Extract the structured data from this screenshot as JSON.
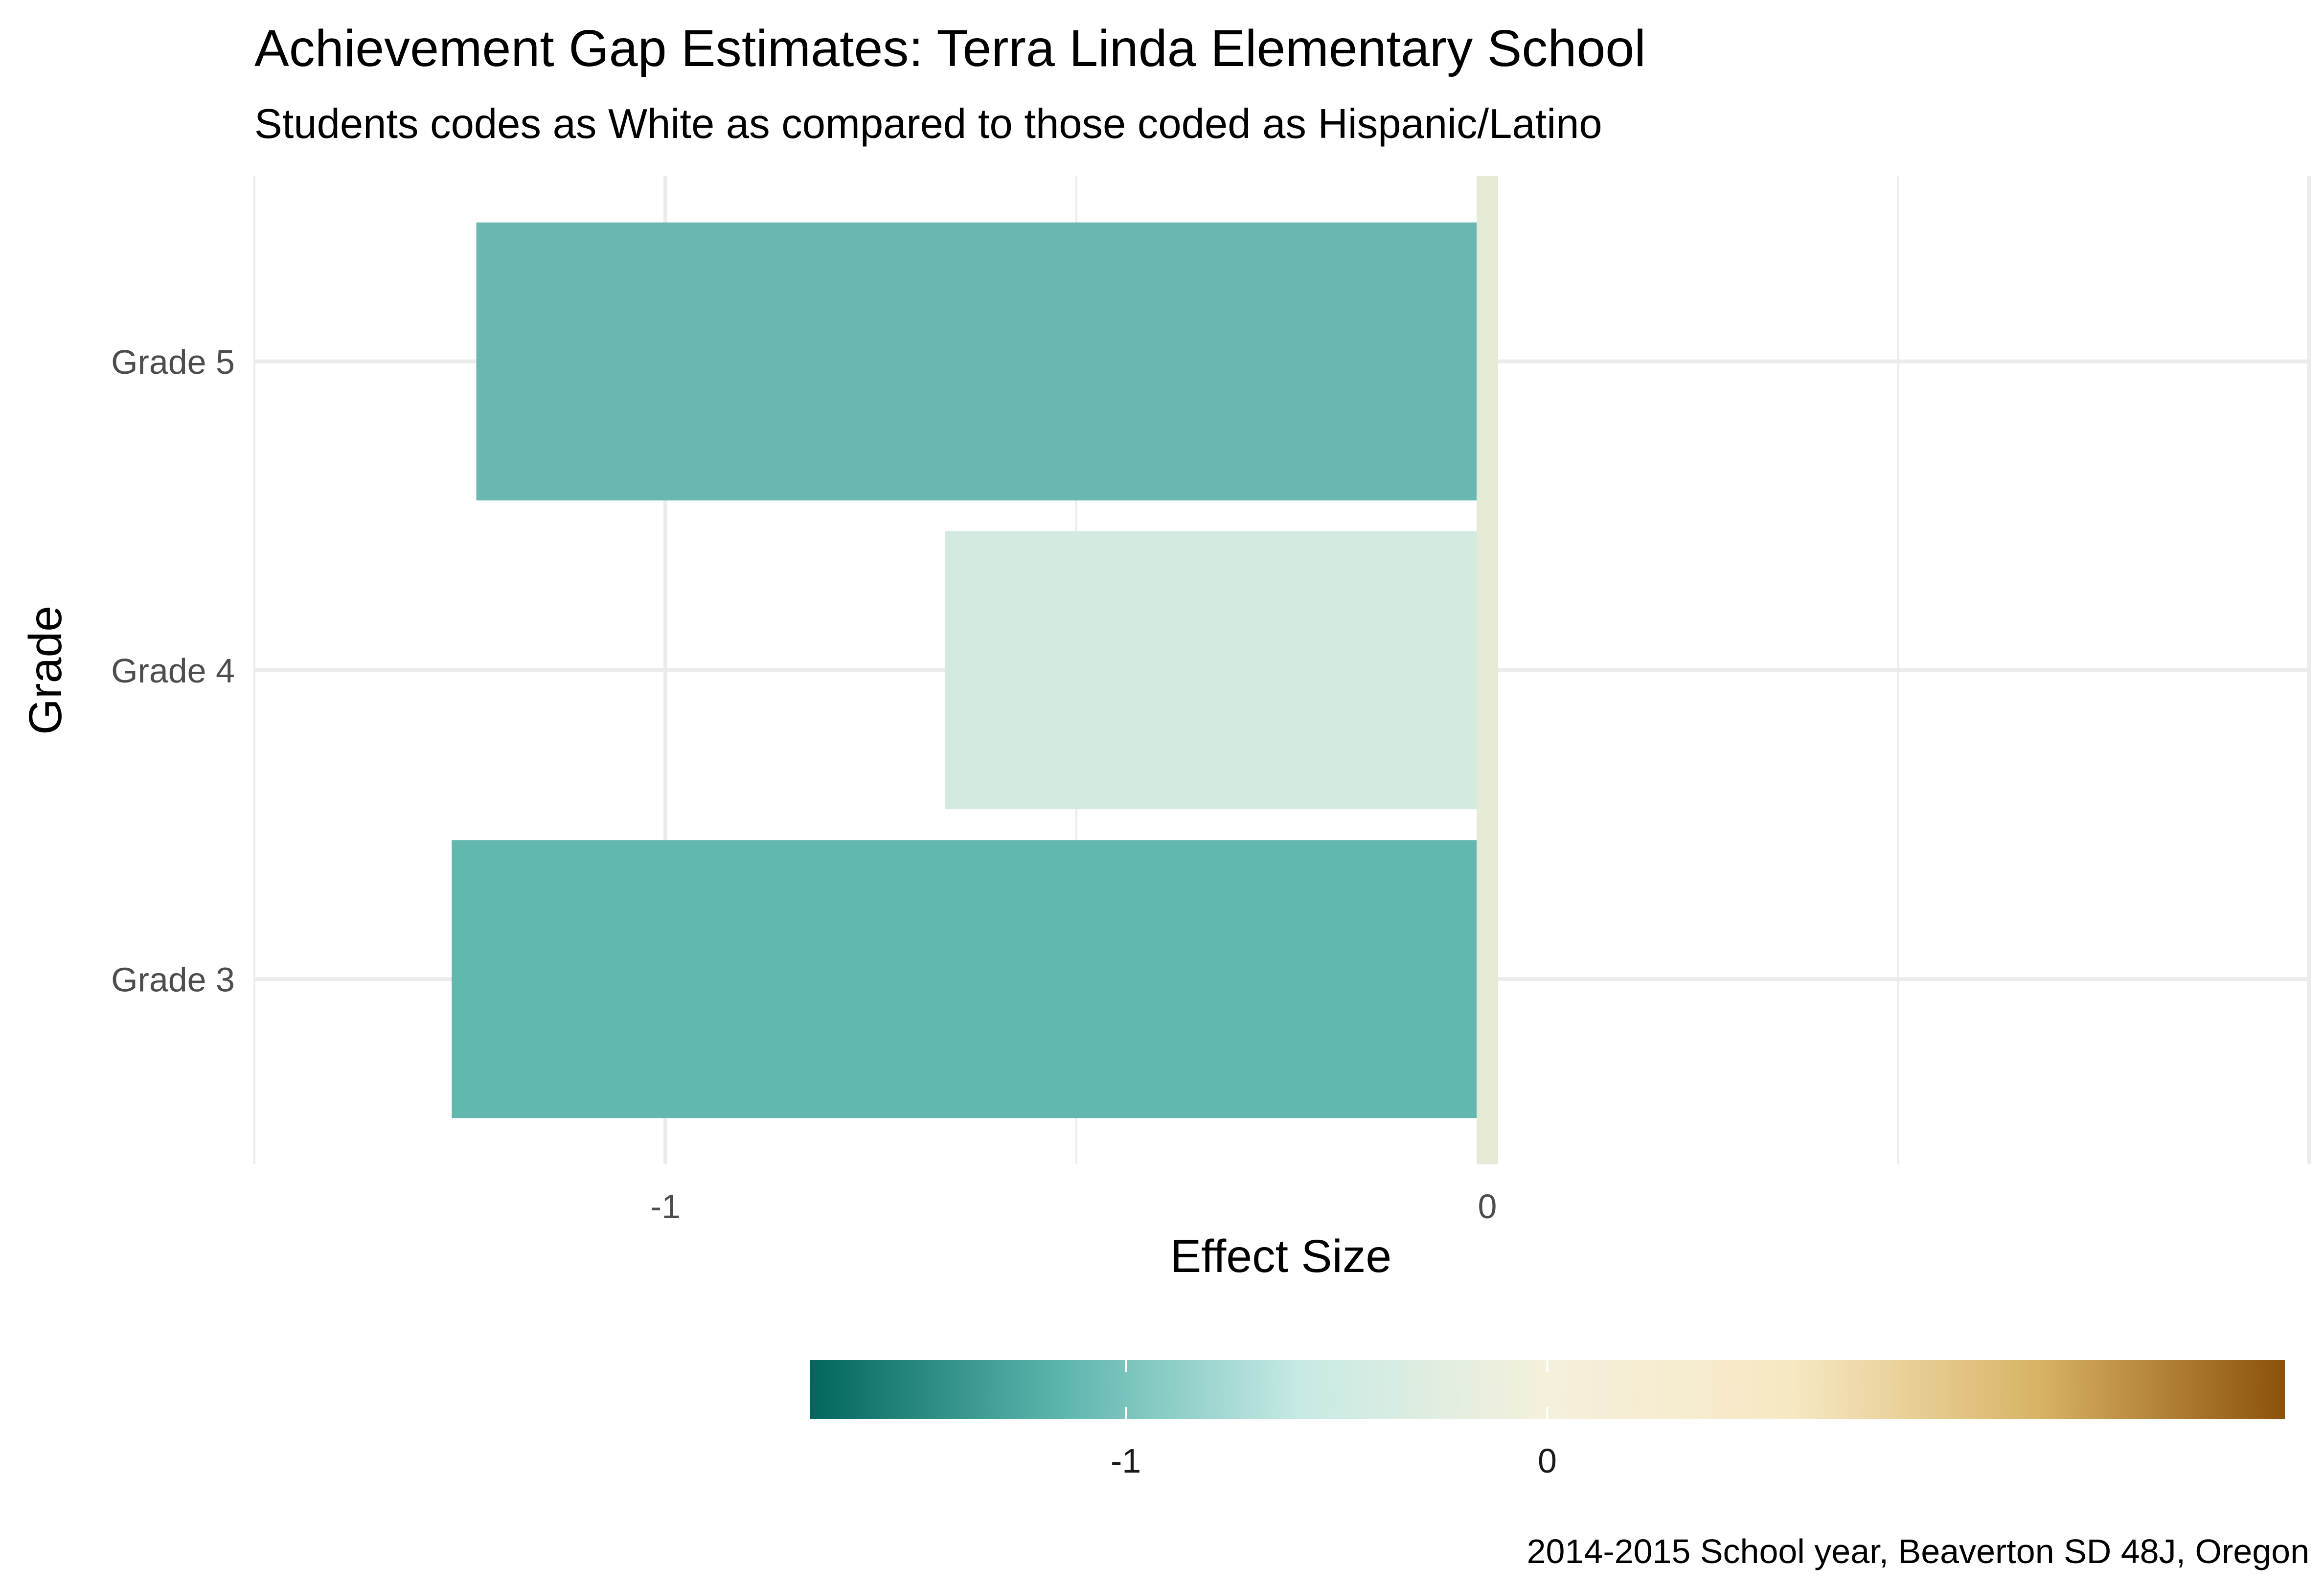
{
  "chart_data": {
    "type": "bar",
    "orientation": "horizontal",
    "title": "Achievement Gap Estimates: Terra Linda Elementary School",
    "subtitle": "Students codes as White as compared to those coded as Hispanic/Latino",
    "xlabel": "Effect Size",
    "ylabel": "Grade",
    "caption": "2014-2015 School year, Beaverton SD 48J, Oregon",
    "categories": [
      "Grade 3",
      "Grade 4",
      "Grade 5"
    ],
    "values": [
      -1.26,
      -0.66,
      -1.23
    ],
    "bar_colors": [
      "#62b7af",
      "#d2eae0",
      "#68b8b1"
    ],
    "xlim": [
      -1.5,
      1
    ],
    "xticks": [
      -1,
      0
    ],
    "xtick_labels": [
      "-1",
      "0"
    ],
    "grid": true,
    "reference_line": {
      "value": 0,
      "color": "#e5ead6"
    },
    "legend": {
      "type": "colorbar",
      "placement": "bottom",
      "range": [
        -1.75,
        1.75
      ],
      "ticks": [
        -1,
        0
      ],
      "tick_labels": [
        "-1",
        "0"
      ],
      "colors": [
        "#01665e",
        "#5ab4ac",
        "#c7eae5",
        "#f5f0dc",
        "#f6e8c3",
        "#d8b365",
        "#8c510a"
      ]
    }
  }
}
